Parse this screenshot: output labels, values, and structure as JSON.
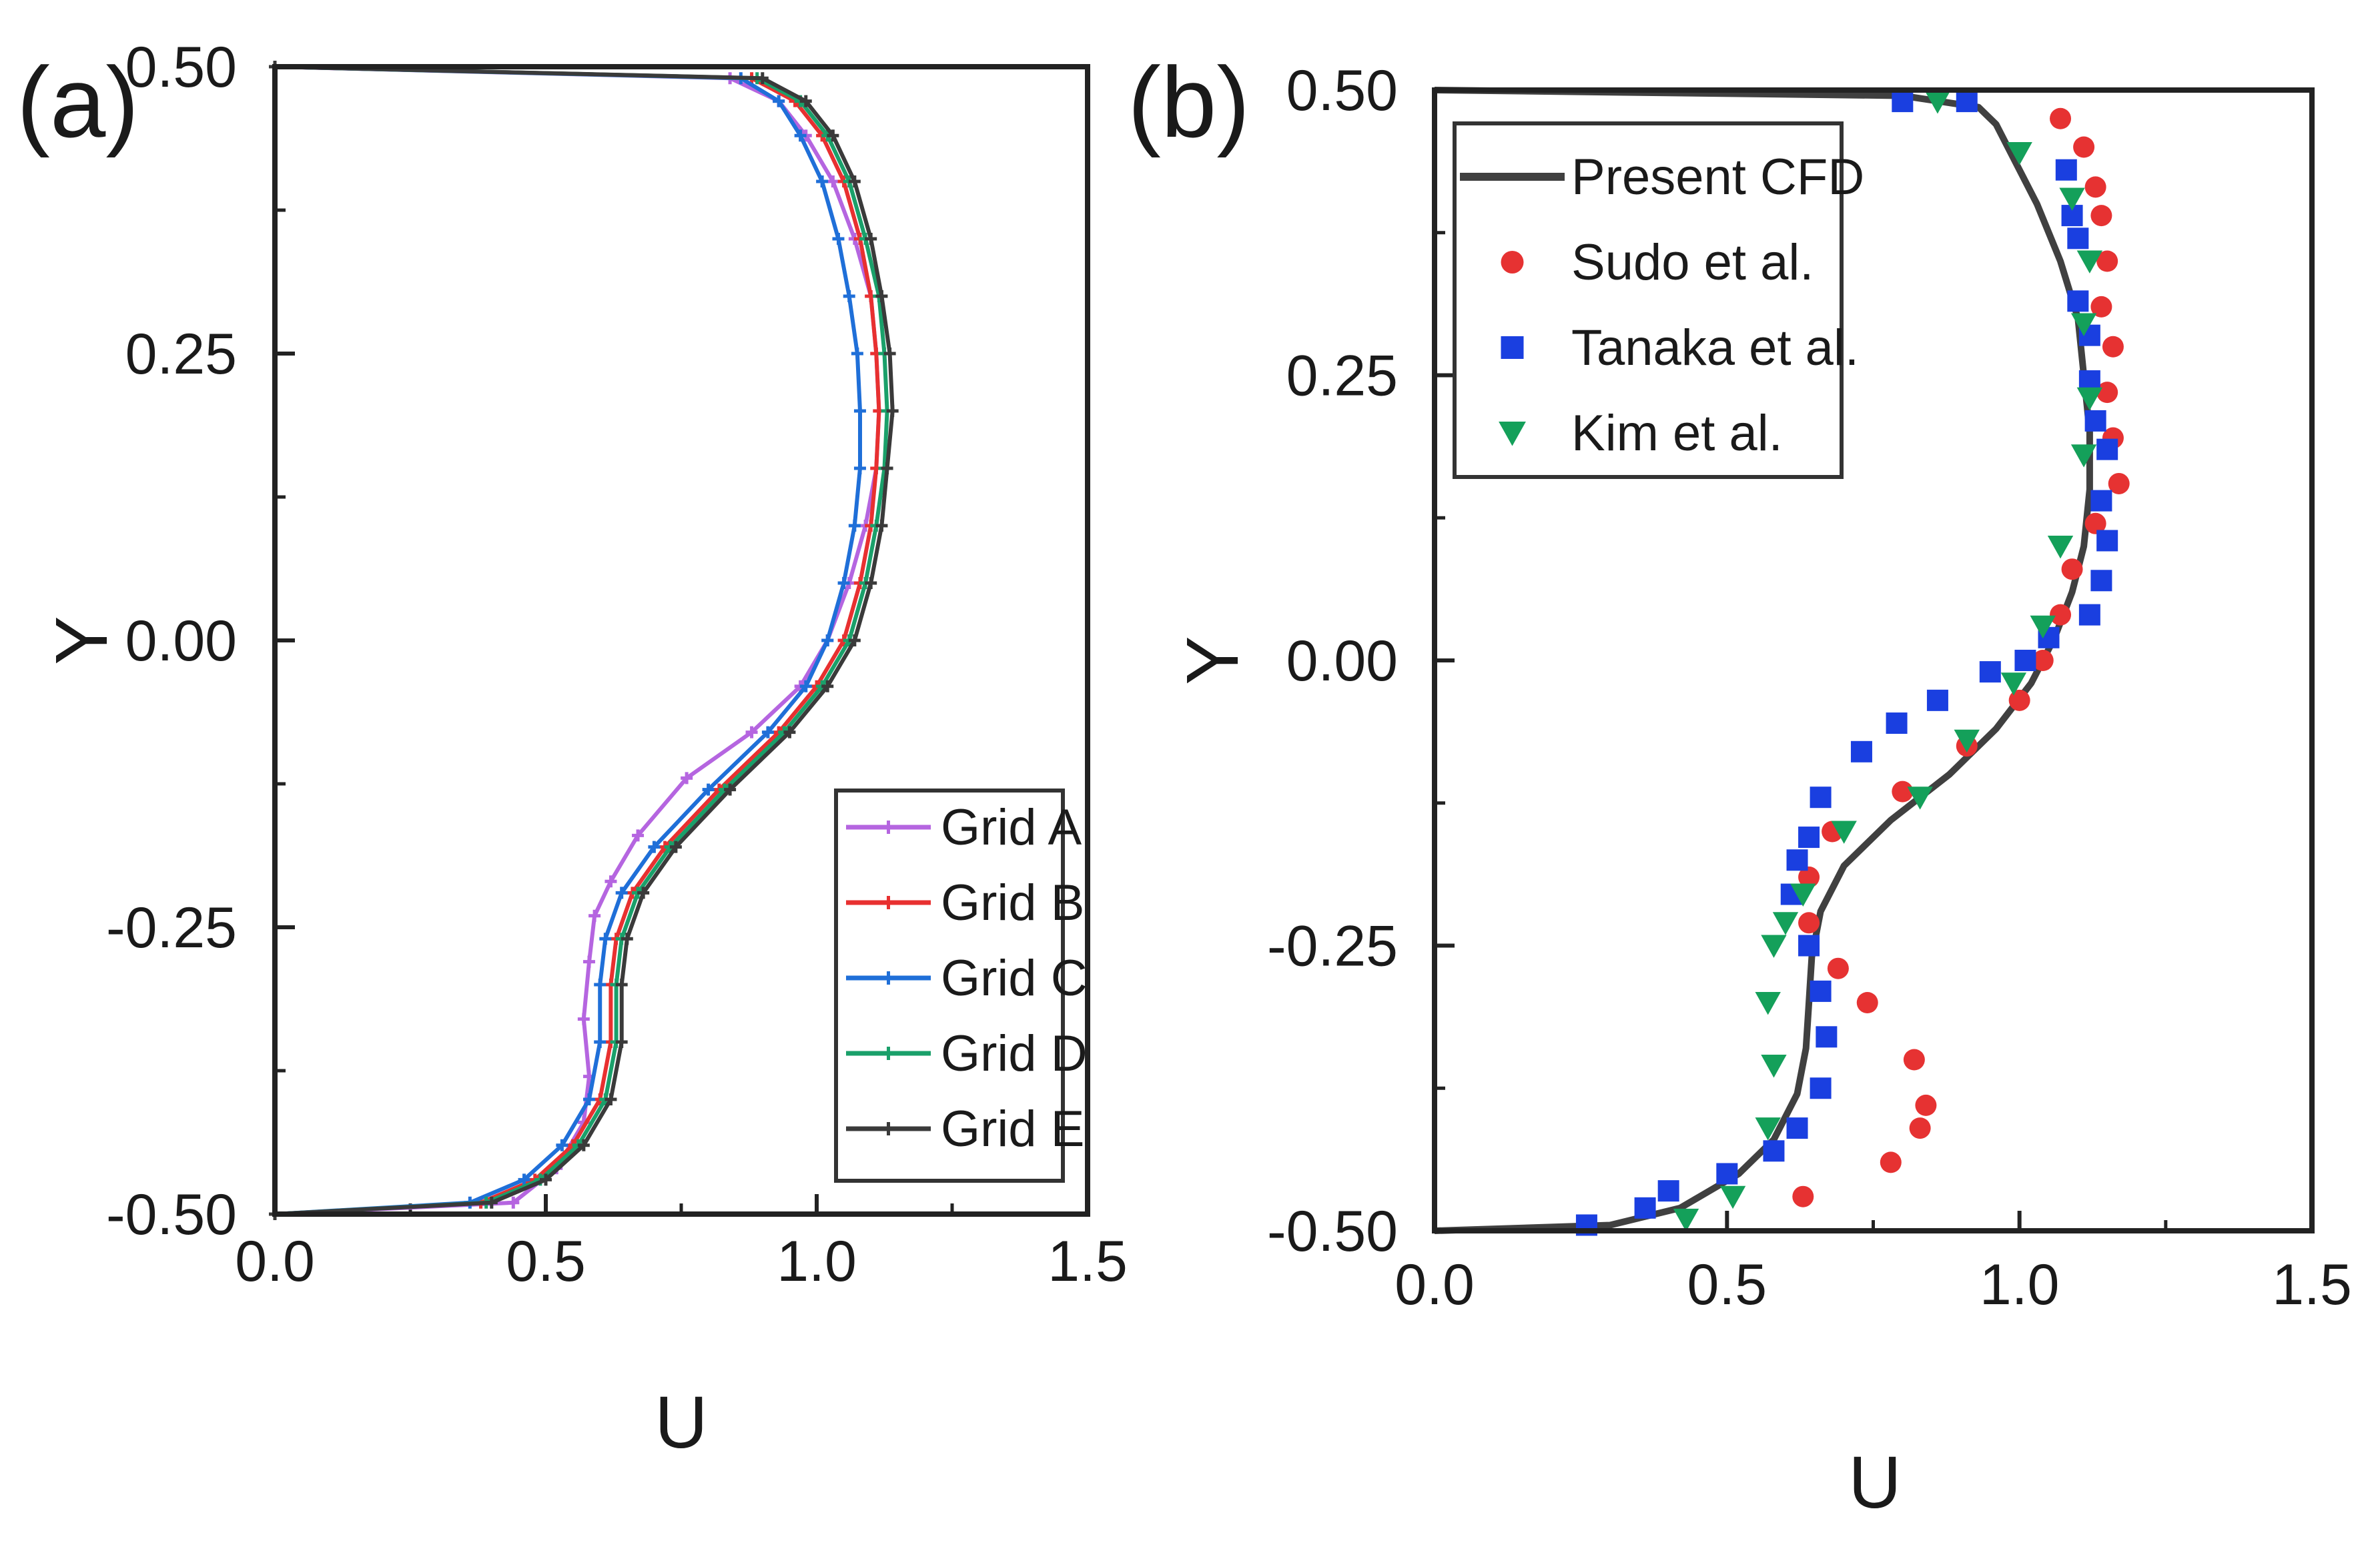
{
  "chart_data": [
    {
      "panel": "(a)",
      "type": "line",
      "xlabel": "U",
      "ylabel": "Y",
      "xlim": [
        0,
        1.5
      ],
      "ylim": [
        -0.5,
        0.5
      ],
      "xticks": [
        "0.0",
        "0.5",
        "1.0",
        "1.5"
      ],
      "yticks": [
        "0.50",
        "0.25",
        "0.00",
        "-0.25",
        "-0.50"
      ],
      "legend_position": "bottom-right",
      "series": [
        {
          "name": "Grid A",
          "color": "#b565e0",
          "marker": "plus",
          "points": [
            [
              0.0,
              -0.5
            ],
            [
              0.44,
              -0.49
            ],
            [
              0.52,
              -0.46
            ],
            [
              0.57,
              -0.42
            ],
            [
              0.58,
              -0.38
            ],
            [
              0.57,
              -0.33
            ],
            [
              0.58,
              -0.28
            ],
            [
              0.59,
              -0.24
            ],
            [
              0.62,
              -0.21
            ],
            [
              0.67,
              -0.17
            ],
            [
              0.76,
              -0.12
            ],
            [
              0.88,
              -0.08
            ],
            [
              0.97,
              -0.04
            ],
            [
              1.02,
              0.0
            ],
            [
              1.06,
              0.05
            ],
            [
              1.09,
              0.1
            ],
            [
              1.11,
              0.15
            ],
            [
              1.115,
              0.2
            ],
            [
              1.11,
              0.25
            ],
            [
              1.1,
              0.3
            ],
            [
              1.07,
              0.35
            ],
            [
              1.03,
              0.4
            ],
            [
              0.98,
              0.44
            ],
            [
              0.93,
              0.47
            ],
            [
              0.84,
              0.49
            ],
            [
              0.0,
              0.5
            ]
          ]
        },
        {
          "name": "Grid B",
          "color": "#e83030",
          "marker": "plus",
          "points": [
            [
              0.0,
              -0.5
            ],
            [
              0.38,
              -0.49
            ],
            [
              0.48,
              -0.47
            ],
            [
              0.55,
              -0.44
            ],
            [
              0.6,
              -0.4
            ],
            [
              0.62,
              -0.35
            ],
            [
              0.62,
              -0.3
            ],
            [
              0.63,
              -0.26
            ],
            [
              0.66,
              -0.22
            ],
            [
              0.72,
              -0.18
            ],
            [
              0.82,
              -0.13
            ],
            [
              0.93,
              -0.08
            ],
            [
              1.0,
              -0.04
            ],
            [
              1.05,
              0.0
            ],
            [
              1.08,
              0.05
            ],
            [
              1.1,
              0.1
            ],
            [
              1.11,
              0.15
            ],
            [
              1.115,
              0.2
            ],
            [
              1.11,
              0.25
            ],
            [
              1.1,
              0.3
            ],
            [
              1.08,
              0.35
            ],
            [
              1.05,
              0.4
            ],
            [
              1.01,
              0.44
            ],
            [
              0.96,
              0.47
            ],
            [
              0.88,
              0.49
            ],
            [
              0.0,
              0.5
            ]
          ]
        },
        {
          "name": "Grid C",
          "color": "#1f6fd8",
          "marker": "plus",
          "points": [
            [
              0.0,
              -0.5
            ],
            [
              0.36,
              -0.49
            ],
            [
              0.46,
              -0.47
            ],
            [
              0.53,
              -0.44
            ],
            [
              0.58,
              -0.4
            ],
            [
              0.6,
              -0.35
            ],
            [
              0.6,
              -0.3
            ],
            [
              0.61,
              -0.26
            ],
            [
              0.64,
              -0.22
            ],
            [
              0.7,
              -0.18
            ],
            [
              0.8,
              -0.13
            ],
            [
              0.91,
              -0.08
            ],
            [
              0.98,
              -0.04
            ],
            [
              1.02,
              0.0
            ],
            [
              1.05,
              0.05
            ],
            [
              1.07,
              0.1
            ],
            [
              1.08,
              0.15
            ],
            [
              1.08,
              0.2
            ],
            [
              1.075,
              0.25
            ],
            [
              1.06,
              0.3
            ],
            [
              1.04,
              0.35
            ],
            [
              1.01,
              0.4
            ],
            [
              0.97,
              0.44
            ],
            [
              0.93,
              0.47
            ],
            [
              0.86,
              0.49
            ],
            [
              0.0,
              0.5
            ]
          ]
        },
        {
          "name": "Grid D",
          "color": "#1aa06a",
          "marker": "plus",
          "points": [
            [
              0.0,
              -0.5
            ],
            [
              0.39,
              -0.49
            ],
            [
              0.49,
              -0.47
            ],
            [
              0.56,
              -0.44
            ],
            [
              0.61,
              -0.4
            ],
            [
              0.63,
              -0.35
            ],
            [
              0.63,
              -0.3
            ],
            [
              0.64,
              -0.26
            ],
            [
              0.67,
              -0.22
            ],
            [
              0.73,
              -0.18
            ],
            [
              0.83,
              -0.13
            ],
            [
              0.94,
              -0.08
            ],
            [
              1.01,
              -0.04
            ],
            [
              1.06,
              0.0
            ],
            [
              1.09,
              0.05
            ],
            [
              1.11,
              0.1
            ],
            [
              1.125,
              0.15
            ],
            [
              1.13,
              0.2
            ],
            [
              1.125,
              0.25
            ],
            [
              1.115,
              0.3
            ],
            [
              1.09,
              0.35
            ],
            [
              1.06,
              0.4
            ],
            [
              1.02,
              0.44
            ],
            [
              0.97,
              0.47
            ],
            [
              0.89,
              0.49
            ],
            [
              0.0,
              0.5
            ]
          ]
        },
        {
          "name": "Grid E",
          "color": "#3a3a3a",
          "marker": "plus",
          "points": [
            [
              0.0,
              -0.5
            ],
            [
              0.4,
              -0.49
            ],
            [
              0.5,
              -0.47
            ],
            [
              0.57,
              -0.44
            ],
            [
              0.62,
              -0.4
            ],
            [
              0.64,
              -0.35
            ],
            [
              0.64,
              -0.3
            ],
            [
              0.65,
              -0.26
            ],
            [
              0.68,
              -0.22
            ],
            [
              0.74,
              -0.18
            ],
            [
              0.84,
              -0.13
            ],
            [
              0.95,
              -0.08
            ],
            [
              1.02,
              -0.04
            ],
            [
              1.07,
              0.0
            ],
            [
              1.1,
              0.05
            ],
            [
              1.12,
              0.1
            ],
            [
              1.13,
              0.15
            ],
            [
              1.14,
              0.2
            ],
            [
              1.135,
              0.25
            ],
            [
              1.12,
              0.3
            ],
            [
              1.1,
              0.35
            ],
            [
              1.07,
              0.4
            ],
            [
              1.03,
              0.44
            ],
            [
              0.98,
              0.47
            ],
            [
              0.9,
              0.49
            ],
            [
              0.0,
              0.5
            ]
          ]
        }
      ]
    },
    {
      "panel": "(b)",
      "type": "scatter",
      "xlabel": "U",
      "ylabel": "Y",
      "xlim": [
        0,
        1.5
      ],
      "ylim": [
        -0.5,
        0.5
      ],
      "xticks": [
        "0.0",
        "0.5",
        "1.0",
        "1.5"
      ],
      "yticks": [
        "0.50",
        "0.25",
        "0.00",
        "-0.25",
        "-0.50"
      ],
      "legend_position": "top-left",
      "series": [
        {
          "name": "Present CFD",
          "color": "#404040",
          "marker": "line",
          "points": [
            [
              0.0,
              -0.5
            ],
            [
              0.3,
              -0.495
            ],
            [
              0.42,
              -0.48
            ],
            [
              0.52,
              -0.45
            ],
            [
              0.58,
              -0.42
            ],
            [
              0.62,
              -0.38
            ],
            [
              0.635,
              -0.34
            ],
            [
              0.64,
              -0.3
            ],
            [
              0.645,
              -0.26
            ],
            [
              0.66,
              -0.22
            ],
            [
              0.7,
              -0.18
            ],
            [
              0.78,
              -0.14
            ],
            [
              0.88,
              -0.1
            ],
            [
              0.96,
              -0.06
            ],
            [
              1.02,
              -0.02
            ],
            [
              1.06,
              0.02
            ],
            [
              1.09,
              0.06
            ],
            [
              1.11,
              0.1
            ],
            [
              1.12,
              0.15
            ],
            [
              1.12,
              0.2
            ],
            [
              1.11,
              0.25
            ],
            [
              1.1,
              0.3
            ],
            [
              1.07,
              0.35
            ],
            [
              1.03,
              0.4
            ],
            [
              0.99,
              0.44
            ],
            [
              0.96,
              0.47
            ],
            [
              0.93,
              0.485
            ],
            [
              0.8,
              0.495
            ],
            [
              0.0,
              0.5
            ]
          ]
        },
        {
          "name": "Sudo et al.",
          "color": "#e63232",
          "marker": "circle",
          "points": [
            [
              0.63,
              -0.47
            ],
            [
              0.78,
              -0.44
            ],
            [
              0.83,
              -0.41
            ],
            [
              0.84,
              -0.39
            ],
            [
              0.82,
              -0.35
            ],
            [
              0.74,
              -0.3
            ],
            [
              0.69,
              -0.27
            ],
            [
              0.64,
              -0.23
            ],
            [
              0.64,
              -0.19
            ],
            [
              0.68,
              -0.15
            ],
            [
              0.8,
              -0.115
            ],
            [
              0.91,
              -0.075
            ],
            [
              1.0,
              -0.035
            ],
            [
              1.04,
              0.0
            ],
            [
              1.07,
              0.04
            ],
            [
              1.09,
              0.08
            ],
            [
              1.13,
              0.12
            ],
            [
              1.17,
              0.155
            ],
            [
              1.16,
              0.195
            ],
            [
              1.15,
              0.235
            ],
            [
              1.16,
              0.275
            ],
            [
              1.14,
              0.31
            ],
            [
              1.15,
              0.35
            ],
            [
              1.14,
              0.39
            ],
            [
              1.13,
              0.415
            ],
            [
              1.11,
              0.45
            ],
            [
              1.07,
              0.475
            ]
          ]
        },
        {
          "name": "Tanaka et al.",
          "color": "#1a3fe0",
          "marker": "square",
          "points": [
            [
              0.26,
              -0.495
            ],
            [
              0.36,
              -0.48
            ],
            [
              0.4,
              -0.465
            ],
            [
              0.5,
              -0.45
            ],
            [
              0.58,
              -0.43
            ],
            [
              0.62,
              -0.41
            ],
            [
              0.66,
              -0.375
            ],
            [
              0.67,
              -0.33
            ],
            [
              0.66,
              -0.29
            ],
            [
              0.64,
              -0.25
            ],
            [
              0.61,
              -0.205
            ],
            [
              0.62,
              -0.175
            ],
            [
              0.64,
              -0.155
            ],
            [
              0.66,
              -0.12
            ],
            [
              0.73,
              -0.08
            ],
            [
              0.79,
              -0.055
            ],
            [
              0.86,
              -0.035
            ],
            [
              0.95,
              -0.01
            ],
            [
              1.01,
              0.0
            ],
            [
              1.05,
              0.02
            ],
            [
              1.12,
              0.04
            ],
            [
              1.14,
              0.07
            ],
            [
              1.15,
              0.105
            ],
            [
              1.14,
              0.14
            ],
            [
              1.15,
              0.185
            ],
            [
              1.13,
              0.21
            ],
            [
              1.12,
              0.245
            ],
            [
              1.12,
              0.285
            ],
            [
              1.1,
              0.315
            ],
            [
              1.1,
              0.37
            ],
            [
              1.09,
              0.39
            ],
            [
              1.08,
              0.43
            ],
            [
              0.91,
              0.49
            ],
            [
              0.8,
              0.49
            ]
          ]
        },
        {
          "name": "Kim et al.",
          "color": "#14a05a",
          "marker": "triangle-down",
          "points": [
            [
              0.43,
              -0.49
            ],
            [
              0.51,
              -0.47
            ],
            [
              0.57,
              -0.41
            ],
            [
              0.58,
              -0.355
            ],
            [
              0.57,
              -0.3
            ],
            [
              0.58,
              -0.25
            ],
            [
              0.6,
              -0.23
            ],
            [
              0.63,
              -0.205
            ],
            [
              0.7,
              -0.15
            ],
            [
              0.83,
              -0.12
            ],
            [
              0.91,
              -0.07
            ],
            [
              0.99,
              -0.02
            ],
            [
              1.04,
              0.03
            ],
            [
              1.07,
              0.1
            ],
            [
              1.11,
              0.18
            ],
            [
              1.12,
              0.23
            ],
            [
              1.11,
              0.295
            ],
            [
              1.12,
              0.35
            ],
            [
              1.09,
              0.405
            ],
            [
              1.0,
              0.445
            ],
            [
              0.86,
              0.49
            ]
          ]
        }
      ]
    }
  ]
}
